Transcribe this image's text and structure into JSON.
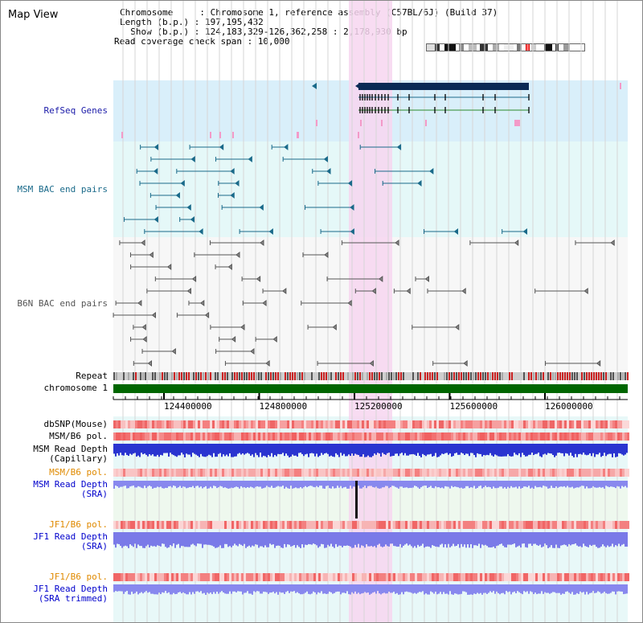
{
  "view": {
    "title": "Map View"
  },
  "info": {
    "chromosome_line": "Chromosome     : Chromosome 1, reference assembly (C57BL/6J) (Build 37)",
    "length_line": "Length (b.p.) : 197,195,432",
    "show_line": "  Show (b.p.) : 124,183,329-126,362,258 : 2,178,930 bp",
    "coverage_line": "Read coverage check span : 10,000"
  },
  "tracks": {
    "refseq": {
      "label": "RefSeq Genes",
      "color": "#1a1aa8"
    },
    "msm_bac": {
      "label": "MSM BAC end pairs",
      "color": "#1a6a8a"
    },
    "b6n_bac": {
      "label": "B6N BAC end pairs",
      "color": "#555555"
    },
    "repeat": {
      "label": "Repeat"
    },
    "chromosome": {
      "label": "chromosome 1",
      "bar_color": "#006600"
    },
    "dbsnp": {
      "label": "dbSNP(Mouse)"
    },
    "msm_b6_pol_1": {
      "label": "MSM/B6 pol."
    },
    "msm_depth_cap": {
      "label_1": "MSM Read Depth",
      "label_2": "(Capillary)"
    },
    "msm_b6_pol_2": {
      "label": "MSM/B6 pol.",
      "color": "#e08a00"
    },
    "msm_depth_sra": {
      "label_1": "MSM Read Depth",
      "label_2": "(SRA)",
      "color": "#0000cc"
    },
    "jf1_b6_pol_1": {
      "label": "JF1/B6 pol.",
      "color": "#e08a00"
    },
    "jf1_depth_sra": {
      "label_1": "JF1 Read Depth",
      "label_2": "(SRA)",
      "color": "#0000cc"
    },
    "jf1_b6_pol_2": {
      "label": "JF1/B6 pol.",
      "color": "#e08a00"
    },
    "jf1_depth_trim": {
      "label_1": "JF1 Read Depth",
      "label_2": "(SRA trimmed)",
      "color": "#0000cc"
    }
  },
  "axis": {
    "ticks": [
      "124400000",
      "124800000",
      "125200000",
      "125600000",
      "126000000"
    ]
  },
  "highlight": {
    "color": "#f7d6f0"
  }
}
